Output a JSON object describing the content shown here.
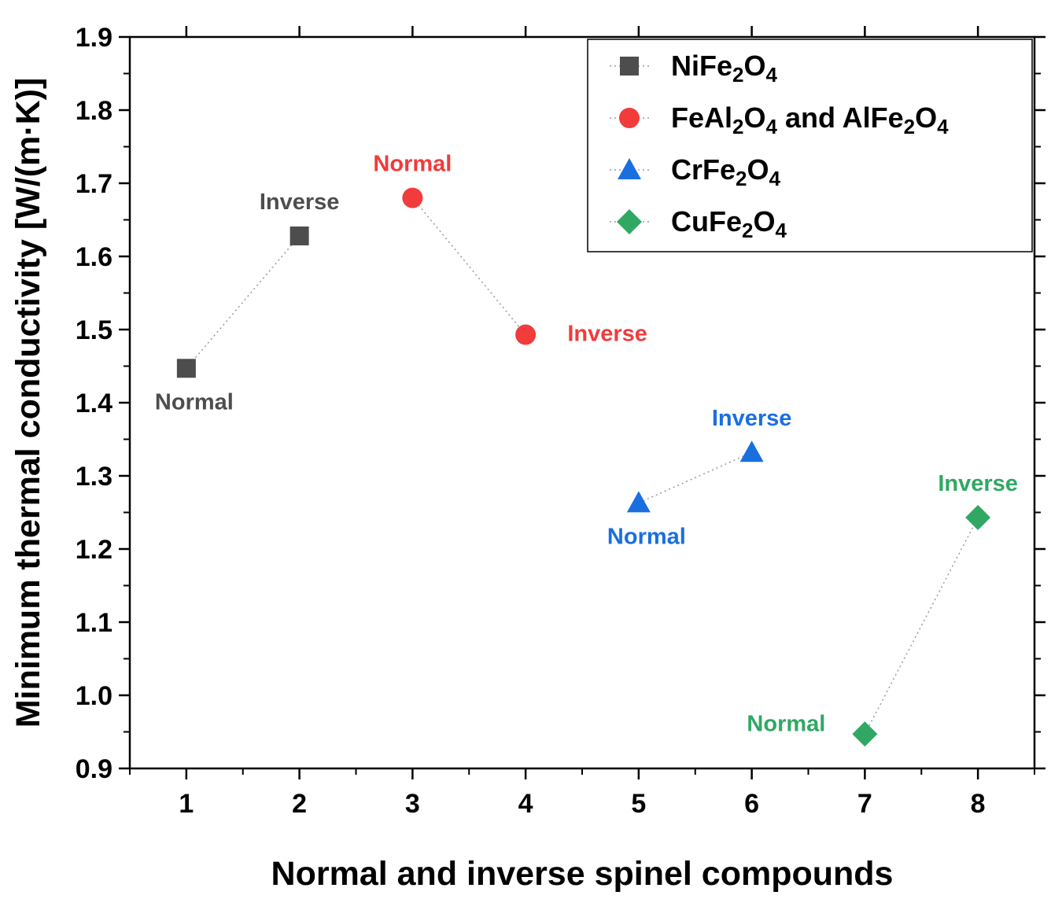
{
  "chart_data": {
    "type": "scatter",
    "xlabel": "Normal and inverse spinel compounds",
    "ylabel": "Minimum thermal conductivity [W/(m·K)]",
    "xlim": [
      0.5,
      8.5
    ],
    "ylim": [
      0.9,
      1.9
    ],
    "x_ticks": [
      1,
      2,
      3,
      4,
      5,
      6,
      7,
      8
    ],
    "y_ticks": [
      0.9,
      1.0,
      1.1,
      1.2,
      1.3,
      1.4,
      1.5,
      1.6,
      1.7,
      1.8,
      1.9
    ],
    "x_tick_labels": [
      "1",
      "2",
      "3",
      "4",
      "5",
      "6",
      "7",
      "8"
    ],
    "y_tick_labels": [
      "0.9",
      "1.0",
      "1.1",
      "1.2",
      "1.3",
      "1.4",
      "1.5",
      "1.6",
      "1.7",
      "1.8",
      "1.9"
    ],
    "legend_position": "top-right",
    "series": [
      {
        "name": "NiFe2O4",
        "legend_parts": [
          [
            "NiFe",
            false
          ],
          [
            "2",
            true
          ],
          [
            "O",
            false
          ],
          [
            "4",
            true
          ]
        ],
        "marker": "square",
        "color": "#4d4d4d",
        "points": [
          {
            "x": 1,
            "y": 1.447,
            "label": "Normal",
            "label_pos": "below"
          },
          {
            "x": 2,
            "y": 1.628,
            "label": "Inverse",
            "label_pos": "above"
          }
        ]
      },
      {
        "name": "FeAl2O4 and AlFe2O4",
        "legend_parts": [
          [
            "FeAl",
            false
          ],
          [
            "2",
            true
          ],
          [
            "O",
            false
          ],
          [
            "4",
            true
          ],
          [
            " and AlFe",
            false
          ],
          [
            "2",
            true
          ],
          [
            "O",
            false
          ],
          [
            "4",
            true
          ]
        ],
        "marker": "circle",
        "color": "#f23b3b",
        "points": [
          {
            "x": 3,
            "y": 1.68,
            "label": "Normal",
            "label_pos": "above"
          },
          {
            "x": 4,
            "y": 1.493,
            "label": "Inverse",
            "label_pos": "right"
          }
        ]
      },
      {
        "name": "CrFe2O4",
        "legend_parts": [
          [
            "CrFe",
            false
          ],
          [
            "2",
            true
          ],
          [
            "O",
            false
          ],
          [
            "4",
            true
          ]
        ],
        "marker": "triangle",
        "color": "#1a6fe0",
        "points": [
          {
            "x": 5,
            "y": 1.263,
            "label": "Normal",
            "label_pos": "below"
          },
          {
            "x": 6,
            "y": 1.332,
            "label": "Inverse",
            "label_pos": "above"
          }
        ]
      },
      {
        "name": "CuFe2O4",
        "legend_parts": [
          [
            "CuFe",
            false
          ],
          [
            "2",
            true
          ],
          [
            "O",
            false
          ],
          [
            "4",
            true
          ]
        ],
        "marker": "diamond",
        "color": "#30a863",
        "points": [
          {
            "x": 7,
            "y": 0.947,
            "label": "Normal",
            "label_pos": "left"
          },
          {
            "x": 8,
            "y": 1.243,
            "label": "Inverse",
            "label_pos": "above"
          }
        ]
      }
    ]
  }
}
